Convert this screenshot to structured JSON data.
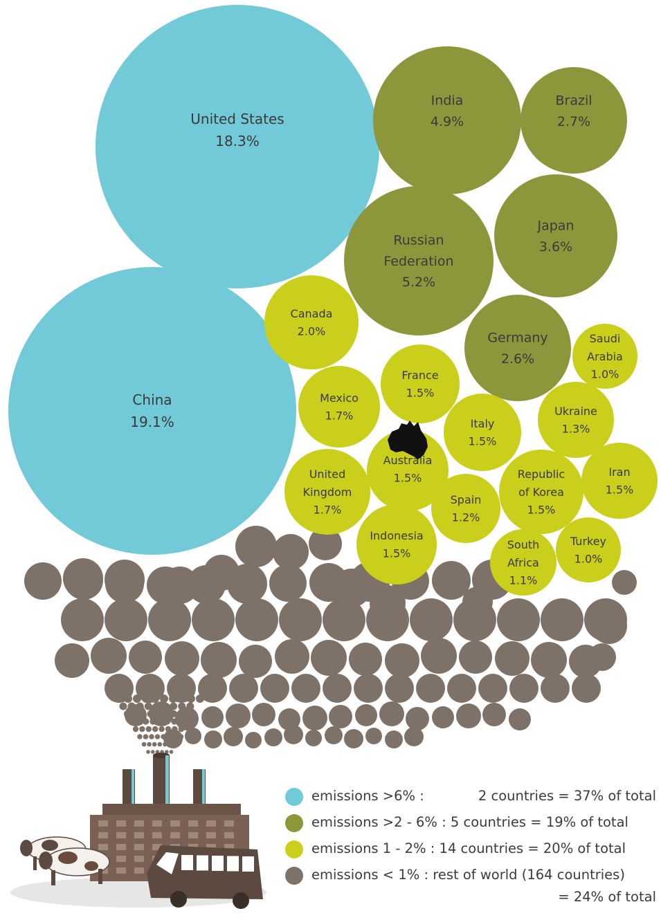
{
  "colors": {
    "over6": "#72c9d7",
    "two_to_six": "#8e963c",
    "one_to_two": "#c9cf1b",
    "under1": "#7d7168",
    "text": "#3a3a3a"
  },
  "chart_data": {
    "type": "bubble",
    "unit": "%",
    "countries": [
      {
        "name": "United States",
        "lines": [
          "United States"
        ],
        "value": 18.3,
        "label": "18.3%",
        "group": "over6"
      },
      {
        "name": "China",
        "lines": [
          "China"
        ],
        "value": 19.1,
        "label": "19.1%",
        "group": "over6"
      },
      {
        "name": "India",
        "lines": [
          "India"
        ],
        "value": 4.9,
        "label": "4.9%",
        "group": "two_to_six"
      },
      {
        "name": "Brazil",
        "lines": [
          "Brazil"
        ],
        "value": 2.7,
        "label": "2.7%",
        "group": "two_to_six"
      },
      {
        "name": "Russian Federation",
        "lines": [
          "Russian",
          "Federation"
        ],
        "value": 5.2,
        "label": "5.2%",
        "group": "two_to_six"
      },
      {
        "name": "Japan",
        "lines": [
          "Japan"
        ],
        "value": 3.6,
        "label": "3.6%",
        "group": "two_to_six"
      },
      {
        "name": "Germany",
        "lines": [
          "Germany"
        ],
        "value": 2.6,
        "label": "2.6%",
        "group": "two_to_six"
      },
      {
        "name": "Canada",
        "lines": [
          "Canada"
        ],
        "value": 2.0,
        "label": "2.0%",
        "group": "one_to_two"
      },
      {
        "name": "Saudi Arabia",
        "lines": [
          "Saudi",
          "Arabia"
        ],
        "value": 1.0,
        "label": "1.0%",
        "group": "one_to_two"
      },
      {
        "name": "France",
        "lines": [
          "France"
        ],
        "value": 1.5,
        "label": "1.5%",
        "group": "one_to_two"
      },
      {
        "name": "Mexico",
        "lines": [
          "Mexico"
        ],
        "value": 1.7,
        "label": "1.7%",
        "group": "one_to_two"
      },
      {
        "name": "Ukraine",
        "lines": [
          "Ukraine"
        ],
        "value": 1.3,
        "label": "1.3%",
        "group": "one_to_two"
      },
      {
        "name": "Italy",
        "lines": [
          "Italy"
        ],
        "value": 1.5,
        "label": "1.5%",
        "group": "one_to_two"
      },
      {
        "name": "Australia",
        "lines": [
          "Australia"
        ],
        "value": 1.5,
        "label": "1.5%",
        "group": "one_to_two"
      },
      {
        "name": "United Kingdom",
        "lines": [
          "United",
          "Kingdom"
        ],
        "value": 1.7,
        "label": "1.7%",
        "group": "one_to_two"
      },
      {
        "name": "Republic of Korea",
        "lines": [
          "Republic",
          "of Korea"
        ],
        "value": 1.5,
        "label": "1.5%",
        "group": "one_to_two"
      },
      {
        "name": "Iran",
        "lines": [
          "Iran"
        ],
        "value": 1.5,
        "label": "1.5%",
        "group": "one_to_two"
      },
      {
        "name": "Spain",
        "lines": [
          "Spain"
        ],
        "value": 1.2,
        "label": "1.2%",
        "group": "one_to_two"
      },
      {
        "name": "Indonesia",
        "lines": [
          "Indonesia"
        ],
        "value": 1.5,
        "label": "1.5%",
        "group": "one_to_two"
      },
      {
        "name": "South Africa",
        "lines": [
          "South",
          "Africa"
        ],
        "value": 1.1,
        "label": "1.1%",
        "group": "one_to_two"
      },
      {
        "name": "Turkey",
        "lines": [
          "Turkey"
        ],
        "value": 1.0,
        "label": "1.0%",
        "group": "one_to_two"
      }
    ],
    "legend": [
      {
        "group": "over6",
        "label": "emissions >6% :",
        "detail": "2 countries = 37% of total"
      },
      {
        "group": "two_to_six",
        "label": "emissions >2 - 6% : 5 countries = 19% of total"
      },
      {
        "group": "one_to_two",
        "label": "emissions 1 - 2% : 14 countries = 20% of total"
      },
      {
        "group": "under1",
        "label": "emissions < 1% : rest of world (164 countries)",
        "detail2": "= 24% of total"
      }
    ]
  }
}
